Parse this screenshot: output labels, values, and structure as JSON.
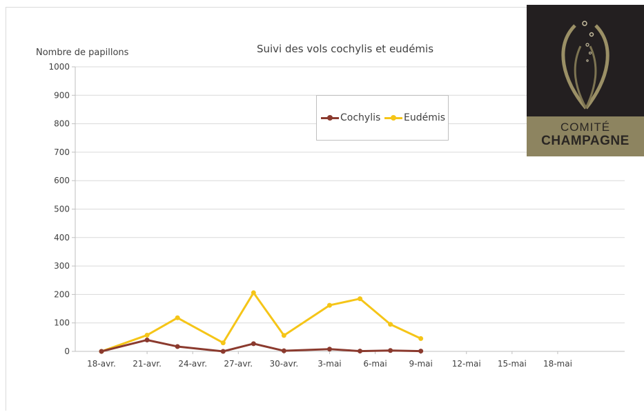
{
  "chart_data": {
    "type": "line",
    "title": "Suivi des vols cochylis et eudémis",
    "ylabel": "Nombre de papillons",
    "xlabel": "",
    "ylim": [
      0,
      1000
    ],
    "yticks": [
      0,
      100,
      200,
      300,
      400,
      500,
      600,
      700,
      800,
      900,
      1000
    ],
    "xtick_labels": [
      "18-avr.",
      "21-avr.",
      "24-avr.",
      "27-avr.",
      "30-avr.",
      "3-mai",
      "6-mai",
      "9-mai",
      "12-mai",
      "15-mai",
      "18-mai"
    ],
    "x_range_days": [
      0,
      32
    ],
    "grid": true,
    "legend_position": "top-center",
    "series": [
      {
        "name": "Cochylis",
        "color": "#8b3a2e",
        "x_days": [
          0,
          3,
          5,
          8,
          10,
          12,
          15,
          17,
          19,
          21
        ],
        "values": [
          0,
          40,
          17,
          0,
          27,
          2,
          8,
          1,
          3,
          1
        ]
      },
      {
        "name": "Eudémis",
        "color": "#f5c518",
        "x_days": [
          0,
          3,
          5,
          8,
          10,
          12,
          15,
          17,
          19,
          21
        ],
        "values": [
          0,
          57,
          118,
          30,
          206,
          56,
          162,
          185,
          95,
          45
        ]
      }
    ]
  },
  "logo": {
    "line1": "COMITÉ",
    "line2": "CHAMPAGNE"
  }
}
